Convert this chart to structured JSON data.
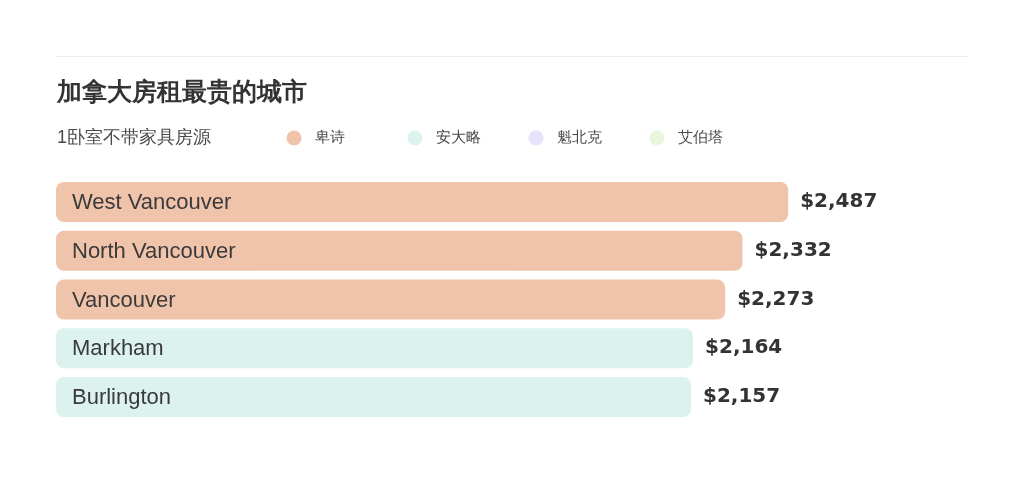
{
  "chart_data": {
    "type": "bar",
    "orientation": "horizontal",
    "stacked": true,
    "title": "加拿大房租最贵的城市",
    "subtitle": "1卧室不带家具房源",
    "categories": [
      "West Vancouver",
      "North Vancouver",
      "Vancouver",
      "Markham",
      "Burlington"
    ],
    "series": [
      {
        "name": "卑诗",
        "color": "#f0c4ab",
        "values": [
          2487,
          2332,
          2273,
          null,
          null
        ],
        "value_labels": [
          "$2,487",
          "$2,332",
          "$2,273",
          null,
          null
        ]
      },
      {
        "name": "安大略",
        "color": "#dcf2ef",
        "values": [
          null,
          null,
          null,
          2164,
          2157
        ],
        "value_labels": [
          null,
          null,
          null,
          "$2,164",
          "$2,157"
        ]
      },
      {
        "name": "魁北克",
        "color": "#e5e2fa",
        "values": [
          null,
          null,
          null,
          null,
          null
        ]
      },
      {
        "name": "艾伯塔",
        "color": "#e8f6dc",
        "values": [
          null,
          null,
          null,
          null,
          null
        ]
      }
    ],
    "xlim": [
      0,
      2500
    ],
    "tick_labels": "y",
    "legend": "top"
  }
}
